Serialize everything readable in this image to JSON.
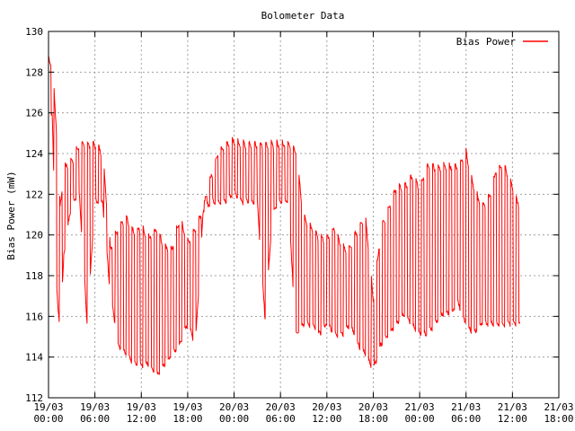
{
  "chart_data": {
    "type": "line",
    "title": "Bolometer Data",
    "xlabel": "",
    "ylabel": "Bias Power (mW)",
    "ylim": [
      112,
      130
    ],
    "yticks": [
      "112",
      "114",
      "116",
      "118",
      "120",
      "122",
      "124",
      "126",
      "128",
      "130"
    ],
    "xlim": [
      "2000-03-19 00:00",
      "2000-03-21 18:00"
    ],
    "xticks": [
      {
        "line1": "19/03",
        "line2": "00:00"
      },
      {
        "line1": "19/03",
        "line2": "06:00"
      },
      {
        "line1": "19/03",
        "line2": "12:00"
      },
      {
        "line1": "19/03",
        "line2": "18:00"
      },
      {
        "line1": "20/03",
        "line2": "00:00"
      },
      {
        "line1": "20/03",
        "line2": "06:00"
      },
      {
        "line1": "20/03",
        "line2": "12:00"
      },
      {
        "line1": "20/03",
        "line2": "18:00"
      },
      {
        "line1": "21/03",
        "line2": "00:00"
      },
      {
        "line1": "21/03",
        "line2": "06:00"
      },
      {
        "line1": "21/03",
        "line2": "12:00"
      },
      {
        "line1": "21/03",
        "line2": "18:00"
      }
    ],
    "grid": true,
    "legend_position": "top-right",
    "series": [
      {
        "name": "Bias Power",
        "color": "#ff0000",
        "envelope_note": "",
        "x": [
          "19/03 00:00",
          "19/03 00:30",
          "19/03 01:00",
          "19/03 01:30",
          "19/03 02:00",
          "19/03 03:00",
          "19/03 04:00",
          "19/03 05:00",
          "19/03 06:00",
          "19/03 07:00",
          "19/03 08:00",
          "19/03 09:00",
          "19/03 10:00",
          "19/03 11:00",
          "19/03 12:00",
          "19/03 13:00",
          "19/03 14:00",
          "19/03 15:00",
          "19/03 16:00",
          "19/03 17:00",
          "19/03 18:00",
          "19/03 19:00",
          "19/03 20:00",
          "19/03 21:00",
          "19/03 22:00",
          "19/03 23:00",
          "20/03 00:00",
          "20/03 01:00",
          "20/03 02:00",
          "20/03 03:00",
          "20/03 04:00",
          "20/03 05:00",
          "20/03 06:00",
          "20/03 07:00",
          "20/03 08:00",
          "20/03 09:00",
          "20/03 10:00",
          "20/03 11:00",
          "20/03 12:00",
          "20/03 13:00",
          "20/03 14:00",
          "20/03 15:00",
          "20/03 16:00",
          "20/03 17:00",
          "20/03 18:00",
          "20/03 19:00",
          "20/03 20:00",
          "20/03 21:00",
          "20/03 22:00",
          "20/03 23:00",
          "21/03 00:00",
          "21/03 01:00",
          "21/03 02:00",
          "21/03 03:00",
          "21/03 04:00",
          "21/03 05:00",
          "21/03 06:00",
          "21/03 07:00",
          "21/03 08:00",
          "21/03 09:00",
          "21/03 10:00",
          "21/03 11:00",
          "21/03 12:00",
          "21/03 13:00"
        ],
        "upper": [
          128.8,
          128.5,
          125.5,
          121.5,
          123.5,
          123.8,
          124.6,
          124.6,
          124.6,
          124.2,
          119.5,
          120.5,
          121.0,
          120.3,
          120.5,
          120.0,
          120.5,
          119.5,
          119.5,
          121.0,
          119.8,
          120.5,
          121.5,
          123.0,
          124.3,
          124.6,
          124.8,
          124.6,
          124.6,
          124.6,
          124.6,
          124.6,
          124.6,
          124.6,
          124.3,
          121.0,
          120.5,
          120.0,
          120.0,
          120.5,
          119.5,
          119.5,
          120.5,
          121.0,
          117.0,
          120.5,
          121.5,
          122.5,
          122.5,
          123.0,
          122.5,
          123.5,
          123.5,
          123.5,
          123.5,
          123.5,
          124.2,
          122.5,
          121.5,
          122.0,
          123.5,
          123.5,
          122.5,
          121.5
        ],
        "lower": [
          125.7,
          125.7,
          117.5,
          115.0,
          119.0,
          121.5,
          121.8,
          115.5,
          121.5,
          121.5,
          117.0,
          114.5,
          114.0,
          113.5,
          113.5,
          113.5,
          113.0,
          113.5,
          114.0,
          114.5,
          115.5,
          114.5,
          121.0,
          121.5,
          121.5,
          121.5,
          122.0,
          121.5,
          121.5,
          121.5,
          115.8,
          121.0,
          121.5,
          121.5,
          115.0,
          115.5,
          115.5,
          115.0,
          115.5,
          115.0,
          115.0,
          115.5,
          114.5,
          114.0,
          113.2,
          114.5,
          115.0,
          115.5,
          116.0,
          115.5,
          115.0,
          115.0,
          115.5,
          116.0,
          116.0,
          116.5,
          115.5,
          115.0,
          115.5,
          115.5,
          115.5,
          115.5,
          115.5,
          115.5
        ]
      }
    ]
  }
}
